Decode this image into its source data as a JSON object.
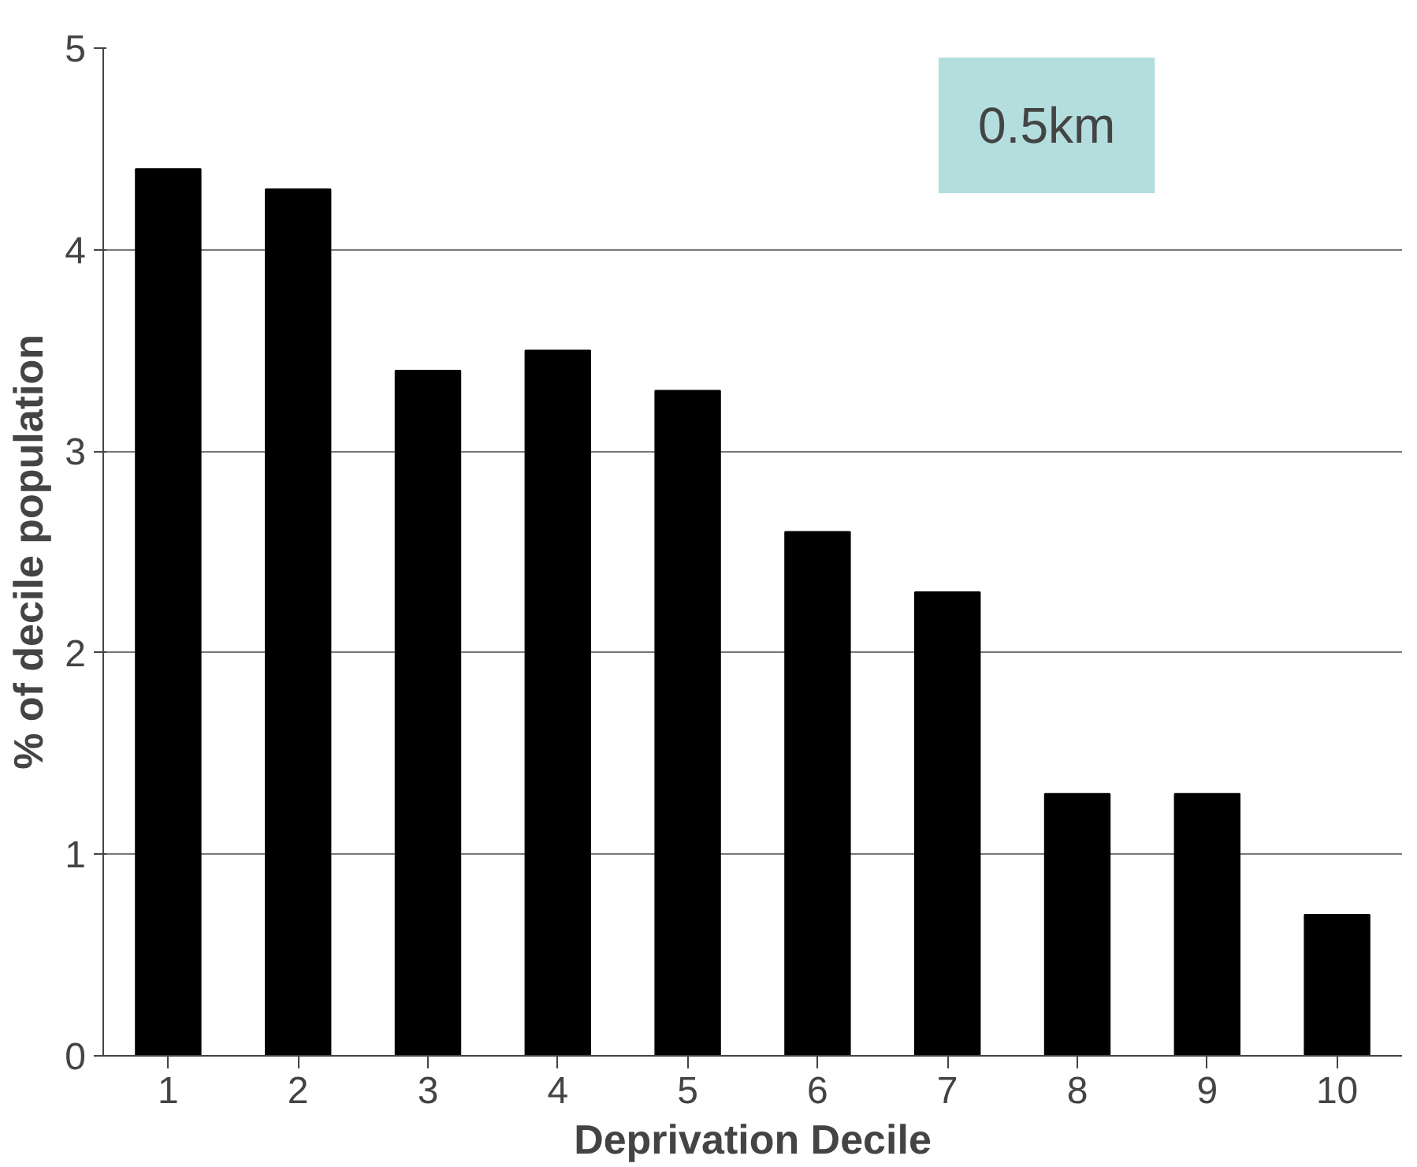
{
  "chart_data": {
    "type": "bar",
    "xlabel": "Deprivation Decile",
    "ylabel": "% of decile population",
    "categories": [
      "1",
      "2",
      "3",
      "4",
      "5",
      "6",
      "7",
      "8",
      "9",
      "10"
    ],
    "values": [
      4.4,
      4.3,
      3.4,
      3.5,
      3.3,
      2.6,
      2.3,
      1.3,
      1.3,
      0.7
    ],
    "color": "#000000",
    "ylim": [
      0,
      5
    ],
    "yticks": [
      0,
      1,
      2,
      3,
      4,
      5
    ],
    "grid": "y",
    "annotations": [
      "0.5km"
    ]
  }
}
